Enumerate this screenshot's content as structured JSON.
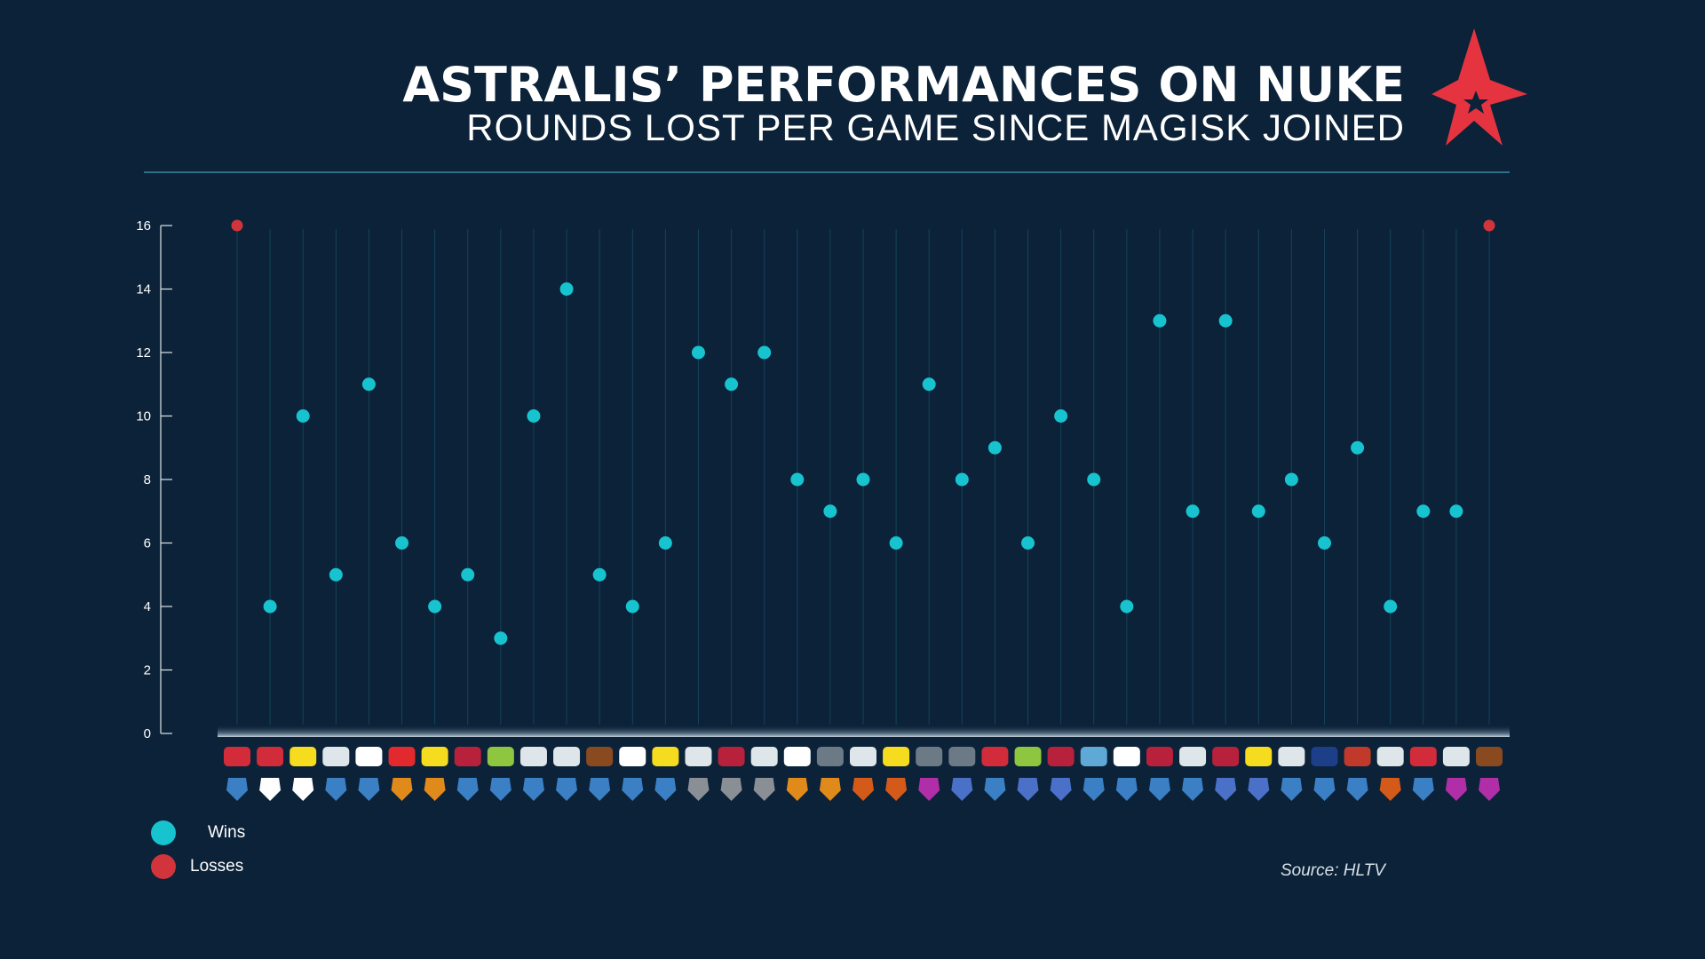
{
  "header": {
    "title": "ASTRALIS’ PERFORMANCES ON NUKE",
    "subtitle": "ROUNDS LOST PER GAME SINCE MAGISK JOINED"
  },
  "legend": {
    "wins_label": "Wins",
    "losses_label": "Losses"
  },
  "source": "Source: HLTV",
  "colors": {
    "background": "#0b2239",
    "win": "#16c3cf",
    "loss": "#d1343a",
    "brand_red": "#e5343f",
    "grid": "#16435a",
    "axis": "#e0e6ea"
  },
  "chart_data": {
    "type": "scatter",
    "title": "ASTRALIS’ PERFORMANCES ON NUKE",
    "subtitle": "ROUNDS LOST PER GAME SINCE MAGISK JOINED",
    "xlabel": "",
    "ylabel": "",
    "ylim": [
      0,
      16
    ],
    "yticks": [
      0,
      2,
      4,
      6,
      8,
      10,
      12,
      14,
      16
    ],
    "grid": "vertical lines per game",
    "legend_placement": "bottom-left",
    "series": [
      {
        "name": "Wins",
        "color": "#16c3cf"
      },
      {
        "name": "Losses",
        "color": "#d1343a"
      }
    ],
    "games": [
      {
        "rounds_lost": 16,
        "result": "loss"
      },
      {
        "rounds_lost": 4,
        "result": "win"
      },
      {
        "rounds_lost": 10,
        "result": "win"
      },
      {
        "rounds_lost": 5,
        "result": "win"
      },
      {
        "rounds_lost": 11,
        "result": "win"
      },
      {
        "rounds_lost": 6,
        "result": "win"
      },
      {
        "rounds_lost": 4,
        "result": "win"
      },
      {
        "rounds_lost": 5,
        "result": "win"
      },
      {
        "rounds_lost": 3,
        "result": "win"
      },
      {
        "rounds_lost": 10,
        "result": "win"
      },
      {
        "rounds_lost": 14,
        "result": "win"
      },
      {
        "rounds_lost": 5,
        "result": "win"
      },
      {
        "rounds_lost": 4,
        "result": "win"
      },
      {
        "rounds_lost": 6,
        "result": "win"
      },
      {
        "rounds_lost": 12,
        "result": "win"
      },
      {
        "rounds_lost": 11,
        "result": "win"
      },
      {
        "rounds_lost": 12,
        "result": "win"
      },
      {
        "rounds_lost": 8,
        "result": "win"
      },
      {
        "rounds_lost": 7,
        "result": "win"
      },
      {
        "rounds_lost": 8,
        "result": "win"
      },
      {
        "rounds_lost": 6,
        "result": "win"
      },
      {
        "rounds_lost": 11,
        "result": "win"
      },
      {
        "rounds_lost": 8,
        "result": "win"
      },
      {
        "rounds_lost": 9,
        "result": "win"
      },
      {
        "rounds_lost": 6,
        "result": "win"
      },
      {
        "rounds_lost": 10,
        "result": "win"
      },
      {
        "rounds_lost": 8,
        "result": "win"
      },
      {
        "rounds_lost": 4,
        "result": "win"
      },
      {
        "rounds_lost": 13,
        "result": "win"
      },
      {
        "rounds_lost": 7,
        "result": "win"
      },
      {
        "rounds_lost": 13,
        "result": "win"
      },
      {
        "rounds_lost": 7,
        "result": "win"
      },
      {
        "rounds_lost": 8,
        "result": "win"
      },
      {
        "rounds_lost": 6,
        "result": "win"
      },
      {
        "rounds_lost": 9,
        "result": "win"
      },
      {
        "rounds_lost": 4,
        "result": "win"
      },
      {
        "rounds_lost": 7,
        "result": "win"
      },
      {
        "rounds_lost": 7,
        "result": "win"
      },
      {
        "rounds_lost": 16,
        "result": "loss"
      }
    ],
    "opponent_logo_colors": [
      "#d22b3a",
      "#d22b3a",
      "#f5dc1f",
      "#dfe6ea",
      "#ffffff",
      "#e2292d",
      "#f5dc1f",
      "#b8213b",
      "#8fc640",
      "#dfe6ea",
      "#dfe6ea",
      "#8a4a1f",
      "#ffffff",
      "#f5dc1f",
      "#dfe6ea",
      "#b8213b",
      "#dfe6ea",
      "#ffffff",
      "#6c7a86",
      "#dfe6ea",
      "#f5dc1f",
      "#6c7a86",
      "#6c7a86",
      "#d22b3a",
      "#8fc640",
      "#b8213b",
      "#5fa9d6",
      "#ffffff",
      "#b8213b",
      "#dfe6ea",
      "#b8213b",
      "#f5dc1f",
      "#dfe6ea",
      "#1c3f88",
      "#c0392b",
      "#dfe6ea",
      "#d22b3a",
      "#dfe6ea",
      "#8a4a1f"
    ],
    "event_logo_colors": [
      "#3b7fc4",
      "#ffffff",
      "#ffffff",
      "#3b7fc4",
      "#3b7fc4",
      "#e08a1c",
      "#e08a1c",
      "#3b7fc4",
      "#3b7fc4",
      "#3b7fc4",
      "#3b7fc4",
      "#3b7fc4",
      "#3b7fc4",
      "#3b7fc4",
      "#8a8f96",
      "#8a8f96",
      "#8a8f96",
      "#e08a1c",
      "#e08a1c",
      "#d45a1a",
      "#d45a1a",
      "#b02fa8",
      "#4a70c8",
      "#3b7fc4",
      "#4a70c8",
      "#4a70c8",
      "#3b7fc4",
      "#3b7fc4",
      "#3b7fc4",
      "#3b7fc4",
      "#4a70c8",
      "#4a70c8",
      "#3b7fc4",
      "#3b7fc4",
      "#3b7fc4",
      "#d45a1a",
      "#3b7fc4",
      "#b02fa8",
      "#b02fa8"
    ]
  }
}
